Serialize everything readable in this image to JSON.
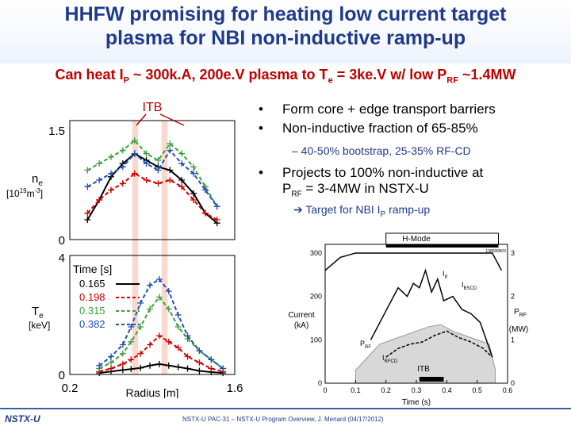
{
  "header": {
    "title_line1": "HHFW promising for heating low current target",
    "title_line2": "plasma for NBI non-inductive ramp-up",
    "subtitle_a": "Can heat I",
    "subtitle_a_sub": "P",
    "subtitle_b": " ~ 300k.A, 200e.V plasma to T",
    "subtitle_b_sub": "e",
    "subtitle_c": " = 3ke.V w/ low P",
    "subtitle_c_sub": "RF",
    "subtitle_d": " ~1.4MW"
  },
  "bullets": {
    "b1": "Form core + edge transport barriers",
    "b2": "Non-inductive fraction of 65-85%",
    "sub1": "–  40-50% bootstrap, 25-35% RF-CD",
    "b3_line1": "Projects to 100% non-inductive at",
    "b3_line2a": "P",
    "b3_line2_sub": "RF",
    "b3_line2b": " = 3-4MW in NSTX-U",
    "arrow_a": "➔ Target for NBI I",
    "arrow_sub": "P",
    "arrow_b": " ramp-up",
    "dot": "•"
  },
  "footer": {
    "logo": "NSTX-U",
    "text": "NSTX-U PAC-31 – NSTX-U Program Overview, J. Menard (04/17/2012)"
  },
  "chart_data": [
    {
      "type": "line",
      "panel": "density",
      "ylabel": "n",
      "ylabel_sub": "e",
      "ylabel_units": "[10",
      "ylabel_units_sup": "19",
      "ylabel_units_end": "m",
      "ylabel_units_sup2": "-3",
      "ylabel_units_close": "]",
      "annotation": "ITB",
      "yticks": [
        "1.5",
        "0"
      ],
      "ylim": [
        0,
        1.8
      ],
      "xlim": [
        0.2,
        1.6
      ],
      "itb_bands": [
        [
          0.73,
          0.78
        ],
        [
          0.98,
          1.03
        ]
      ],
      "x": [
        0.35,
        0.45,
        0.55,
        0.65,
        0.75,
        0.85,
        0.95,
        1.05,
        1.15,
        1.25,
        1.35,
        1.45
      ],
      "series": [
        {
          "name": "0.165",
          "color": "#000000",
          "style": "solid",
          "values": [
            0.3,
            0.6,
            0.95,
            1.15,
            1.3,
            1.2,
            1.1,
            1.05,
            0.9,
            0.7,
            0.4,
            0.25
          ]
        },
        {
          "name": "0.198",
          "color": "#cc0000",
          "style": "dashed",
          "values": [
            0.4,
            0.6,
            0.75,
            0.85,
            1.0,
            0.9,
            0.85,
            0.9,
            0.8,
            0.6,
            0.4,
            0.3
          ]
        },
        {
          "name": "0.315",
          "color": "#3ca03c",
          "style": "dashed",
          "values": [
            1.05,
            1.15,
            1.25,
            1.35,
            1.5,
            1.3,
            1.2,
            1.45,
            1.3,
            1.1,
            0.8,
            0.5
          ]
        },
        {
          "name": "0.382",
          "color": "#1f4fb4",
          "style": "dashed",
          "values": [
            0.8,
            0.9,
            1.0,
            1.1,
            1.3,
            1.15,
            1.05,
            1.35,
            1.15,
            1.0,
            0.75,
            0.5
          ]
        }
      ]
    },
    {
      "type": "line",
      "panel": "temperature",
      "ylabel": "T",
      "ylabel_sub": "e",
      "ylabel_units": "[keV]",
      "legend_title": "Time [s]",
      "xlabel": "Radius [m]",
      "yticks": [
        "4",
        "0"
      ],
      "xticks": [
        "0.2",
        "1.6"
      ],
      "ylim": [
        0,
        4
      ],
      "xlim": [
        0.2,
        1.6
      ],
      "x": [
        0.45,
        0.55,
        0.65,
        0.72,
        0.8,
        0.88,
        0.96,
        1.04,
        1.12,
        1.2,
        1.3,
        1.4,
        1.5
      ],
      "series": [
        {
          "name": "0.165",
          "color": "#000000",
          "style": "solid",
          "values": [
            0.05,
            0.1,
            0.15,
            0.18,
            0.22,
            0.3,
            0.35,
            0.3,
            0.25,
            0.2,
            0.12,
            0.08,
            0.05
          ]
        },
        {
          "name": "0.198",
          "color": "#cc0000",
          "style": "dashed",
          "values": [
            0.1,
            0.2,
            0.35,
            0.5,
            0.7,
            1.0,
            1.3,
            1.1,
            0.9,
            0.6,
            0.4,
            0.2,
            0.1
          ]
        },
        {
          "name": "0.315",
          "color": "#3ca03c",
          "style": "dashed",
          "values": [
            0.2,
            0.4,
            0.7,
            1.1,
            1.6,
            2.2,
            2.6,
            2.2,
            1.6,
            1.2,
            0.8,
            0.5,
            0.2
          ]
        },
        {
          "name": "0.382",
          "color": "#1f4fb4",
          "style": "dashed",
          "values": [
            0.3,
            0.6,
            1.0,
            1.6,
            2.4,
            3.0,
            3.2,
            2.8,
            2.0,
            1.3,
            0.8,
            0.5,
            0.2
          ]
        }
      ]
    },
    {
      "type": "line",
      "panel": "current-trace",
      "mode_label": "H-Mode",
      "shot": "138506B03",
      "ylabel_line1": "Current",
      "ylabel_line2": "(kA)",
      "y2label_a": "P",
      "y2label_sub": "RF",
      "y2label_b": "(MW)",
      "xlabel": "Time (s)",
      "annotation": "ITB",
      "label_ip": "I",
      "label_ip_sub": "P",
      "label_ibs": "I",
      "label_ibs_sub": "BSCD",
      "label_irf": "I",
      "label_irf_sub": "RFCD",
      "label_prf": "P",
      "label_prf_sub": "RF",
      "xticks": [
        "0",
        "0.1",
        "0.2",
        "0.3",
        "0.4",
        "0.5",
        "0.6"
      ],
      "yticks": [
        "300",
        "200",
        "100",
        "0"
      ],
      "y2ticks": [
        "3",
        "2",
        "1",
        "0"
      ],
      "xlim": [
        0,
        0.6
      ],
      "ylim": [
        0,
        320
      ],
      "y2lim": [
        0,
        3.2
      ],
      "hmode_range": [
        0.2,
        0.57
      ],
      "itb_range": [
        0.31,
        0.39
      ],
      "ip": {
        "x": [
          0.0,
          0.05,
          0.1,
          0.15,
          0.2,
          0.25,
          0.3,
          0.35,
          0.4,
          0.45,
          0.5,
          0.55,
          0.58
        ],
        "values": [
          260,
          290,
          300,
          300,
          300,
          300,
          300,
          300,
          300,
          300,
          300,
          300,
          260
        ]
      },
      "ibscd": {
        "x": [
          0.15,
          0.18,
          0.21,
          0.24,
          0.27,
          0.29,
          0.31,
          0.33,
          0.35,
          0.37,
          0.39,
          0.42,
          0.45,
          0.48,
          0.51,
          0.55
        ],
        "values": [
          100,
          140,
          180,
          220,
          200,
          230,
          220,
          260,
          210,
          240,
          190,
          200,
          170,
          160,
          140,
          60
        ]
      },
      "irfcd": {
        "x": [
          0.2,
          0.24,
          0.28,
          0.32,
          0.36,
          0.4,
          0.44,
          0.48,
          0.52,
          0.55
        ],
        "values": [
          60,
          80,
          90,
          95,
          110,
          120,
          105,
          95,
          80,
          60
        ]
      },
      "prf": {
        "x": [
          0.1,
          0.14,
          0.18,
          0.22,
          0.26,
          0.3,
          0.34,
          0.38,
          0.42,
          0.46,
          0.5,
          0.54,
          0.56
        ],
        "values": [
          0.3,
          0.6,
          0.9,
          1.0,
          1.1,
          1.2,
          1.3,
          1.35,
          1.2,
          1.1,
          1.0,
          0.9,
          0.3
        ]
      }
    }
  ]
}
